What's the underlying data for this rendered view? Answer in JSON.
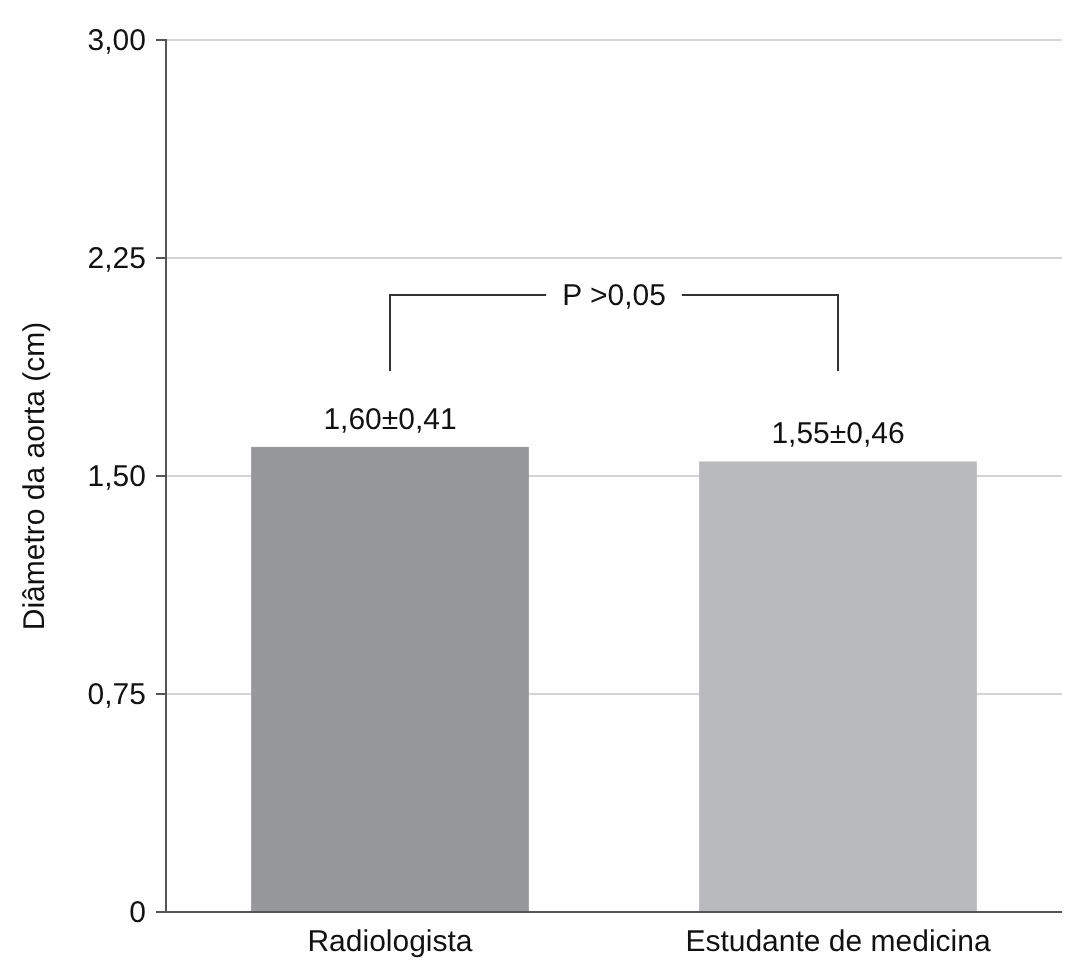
{
  "chart_data": {
    "type": "bar",
    "ylabel": "Diâmetro da aorta (cm)",
    "categories": [
      "Radiologista",
      "Estudante de medicina"
    ],
    "values": [
      1.6,
      1.55
    ],
    "colors": [
      "#97989c",
      "#b9babd"
    ],
    "value_labels": [
      "1,60±0,41",
      "1,55±0,46"
    ],
    "ylim": [
      0,
      3
    ],
    "yticks": [
      0,
      {
        "value": 0.75,
        "label": "0,75"
      },
      {
        "value": 1.5,
        "label": "1,50"
      },
      {
        "value": 2.25,
        "label": "2,25"
      },
      {
        "value": 3,
        "label": "3,00"
      }
    ],
    "grid": "y",
    "annotations": [
      "P >0,05"
    ]
  }
}
